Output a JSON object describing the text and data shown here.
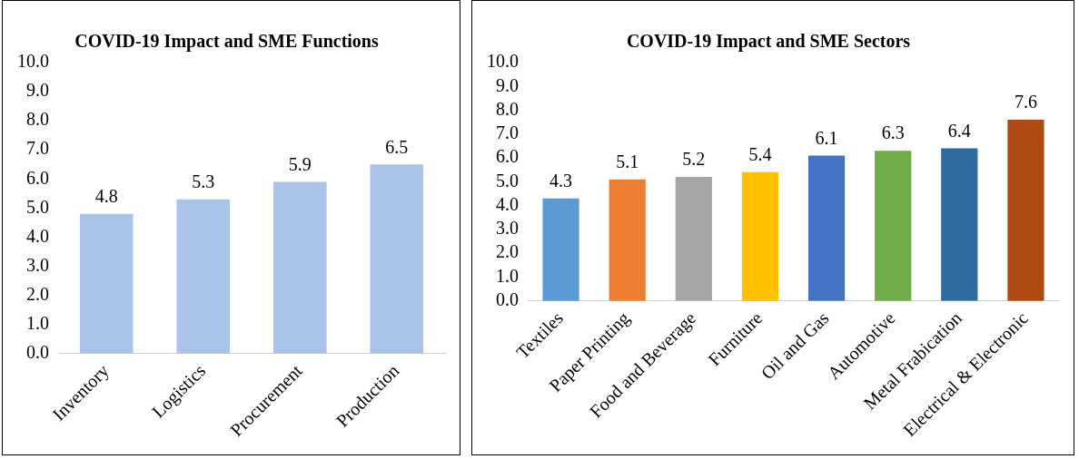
{
  "chart_data": [
    {
      "type": "bar",
      "title": "COVID-19 Impact and SME Functions",
      "categories": [
        "Inventory",
        "Logistics",
        "Procurement",
        "Production"
      ],
      "values": [
        4.8,
        5.3,
        5.9,
        6.5
      ],
      "color": "#a9c4e8",
      "data_labels": true,
      "grid": false,
      "legend": false,
      "ylim": [
        0,
        10
      ],
      "yticks": [
        {
          "value": 0,
          "label": "0.0"
        },
        {
          "value": 1,
          "label": "1.0"
        },
        {
          "value": 2,
          "label": "2.0"
        },
        {
          "value": 3,
          "label": "3.0"
        },
        {
          "value": 4,
          "label": "4.0"
        },
        {
          "value": 5,
          "label": "5.0"
        },
        {
          "value": 6,
          "label": "6.0"
        },
        {
          "value": 7,
          "label": "7.0"
        },
        {
          "value": 8,
          "label": "8.0"
        },
        {
          "value": 9,
          "label": "9.0"
        },
        {
          "value": 10,
          "label": "10.0"
        }
      ]
    },
    {
      "type": "bar",
      "title": "COVID-19 Impact and SME Sectors",
      "categories": [
        "Textiles",
        "Paper Printing",
        "Food and Beverage",
        "Furniture",
        "Oil and Gas",
        "Automotive",
        "Metal Frabication",
        "Electrical & Electronic"
      ],
      "values": [
        4.3,
        5.1,
        5.2,
        5.4,
        6.1,
        6.3,
        6.4,
        7.6
      ],
      "colors": [
        "#5b9bd5",
        "#ed7d31",
        "#a5a5a5",
        "#ffc000",
        "#4472c4",
        "#70ad47",
        "#2f6aa0",
        "#b04a12"
      ],
      "data_labels": true,
      "grid": false,
      "legend": false,
      "ylim": [
        0,
        10
      ],
      "yticks": [
        {
          "value": 0,
          "label": "0.0"
        },
        {
          "value": 1,
          "label": "1.0"
        },
        {
          "value": 2,
          "label": "2.0"
        },
        {
          "value": 3,
          "label": "3.0"
        },
        {
          "value": 4,
          "label": "4.0"
        },
        {
          "value": 5,
          "label": "5.0"
        },
        {
          "value": 6,
          "label": "6.0"
        },
        {
          "value": 7,
          "label": "7.0"
        },
        {
          "value": 8,
          "label": "8.0"
        },
        {
          "value": 9,
          "label": "9.0"
        },
        {
          "value": 10,
          "label": "10.0"
        }
      ]
    }
  ]
}
